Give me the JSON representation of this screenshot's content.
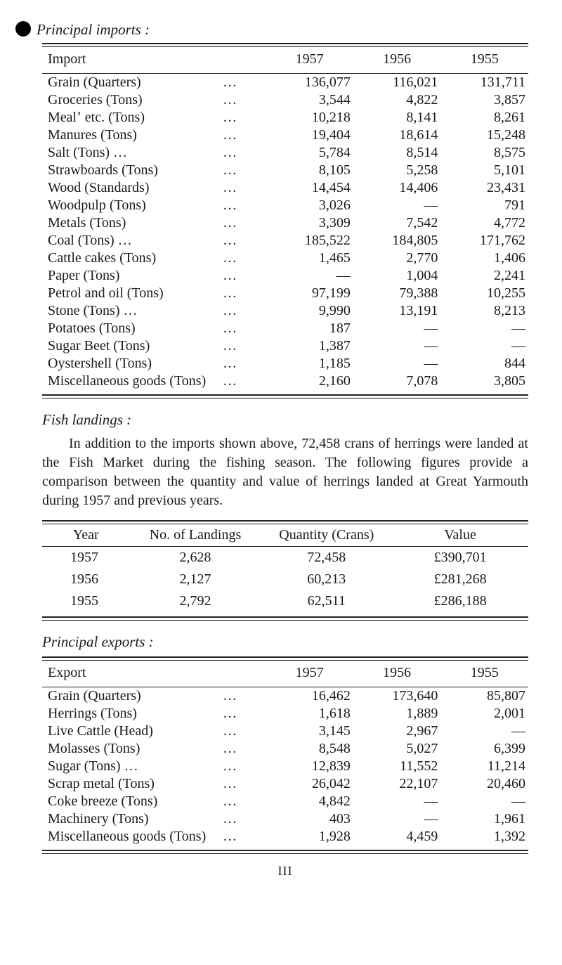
{
  "sections": {
    "imports_title": "Principal imports :",
    "landings_title": "Fish landings :",
    "exports_title": "Principal exports :"
  },
  "years": [
    "1957",
    "1956",
    "1955"
  ],
  "imports": {
    "header_label": "Import",
    "rows": [
      {
        "label": "Grain   (Quarters)",
        "y1957": "136,077",
        "y1956": "116,021",
        "y1955": "131,711"
      },
      {
        "label": "Groceries   (Tons)",
        "y1957": "3,544",
        "y1956": "4,822",
        "y1955": "3,857"
      },
      {
        "label": "Mealʼ etc.   (Tons)",
        "y1957": "10,218",
        "y1956": "8,141",
        "y1955": "8,261"
      },
      {
        "label": "Manures   (Tons)",
        "y1957": "19,404",
        "y1956": "18,614",
        "y1955": "15,248"
      },
      {
        "label": "Salt   (Tons)       …",
        "y1957": "5,784",
        "y1956": "8,514",
        "y1955": "8,575"
      },
      {
        "label": "Strawboards   (Tons)",
        "y1957": "8,105",
        "y1956": "5,258",
        "y1955": "5,101"
      },
      {
        "label": "Wood   (Standards)",
        "y1957": "14,454",
        "y1956": "14,406",
        "y1955": "23,431"
      },
      {
        "label": "Woodpulp   (Tons)",
        "y1957": "3,026",
        "y1956": "—",
        "y1955": "791"
      },
      {
        "label": "Metals   (Tons)",
        "y1957": "3,309",
        "y1956": "7,542",
        "y1955": "4,772"
      },
      {
        "label": "Coal   (Tons)       …",
        "y1957": "185,522",
        "y1956": "184,805",
        "y1955": "171,762"
      },
      {
        "label": "Cattle  cakes   (Tons)",
        "y1957": "1,465",
        "y1956": "2,770",
        "y1955": "1,406"
      },
      {
        "label": "Paper   (Tons)",
        "y1957": "—",
        "y1956": "1,004",
        "y1955": "2,241"
      },
      {
        "label": "Petrol  and  oil   (Tons)",
        "y1957": "97,199",
        "y1956": "79,388",
        "y1955": "10,255"
      },
      {
        "label": "Stone   (Tons)      …",
        "y1957": "9,990",
        "y1956": "13,191",
        "y1955": "8,213"
      },
      {
        "label": "Potatoes   (Tons)",
        "y1957": "187",
        "y1956": "—",
        "y1955": "—"
      },
      {
        "label": "Sugar  Beet   (Tons)",
        "y1957": "1,387",
        "y1956": "—",
        "y1955": "—"
      },
      {
        "label": "Oystershell   (Tons)",
        "y1957": "1,185",
        "y1956": "—",
        "y1955": "844"
      },
      {
        "label": "Miscellaneous goods  (Tons)",
        "y1957": "2,160",
        "y1956": "7,078",
        "y1955": "3,805"
      }
    ]
  },
  "landings_para": "In addition to the imports shown above, 72,458 crans of herrings were landed at the Fish Market during the fishing season. The following figures provide a comparison between the quantity and value of herrings landed at Great Yarmouth during 1957 and previous years.",
  "landings": {
    "headers": [
      "Year",
      "No. of Landings",
      "Quantity (Crans)",
      "Value"
    ],
    "rows": [
      {
        "year": "1957",
        "landings": "2,628",
        "qty": "72,458",
        "value": "£390,701"
      },
      {
        "year": "1956",
        "landings": "2,127",
        "qty": "60,213",
        "value": "£281,268"
      },
      {
        "year": "1955",
        "landings": "2,792",
        "qty": "62,511",
        "value": "£286,188"
      }
    ]
  },
  "exports": {
    "header_label": "Export",
    "rows": [
      {
        "label": "Grain   (Quarters)",
        "y1957": "16,462",
        "y1956": "173,640",
        "y1955": "85,807"
      },
      {
        "label": "Herrings   (Tons)",
        "y1957": "1,618",
        "y1956": "1,889",
        "y1955": "2,001"
      },
      {
        "label": "Live  Cattle   (Head)",
        "y1957": "3,145",
        "y1956": "2,967",
        "y1955": "—"
      },
      {
        "label": "Molasses   (Tons)",
        "y1957": "8,548",
        "y1956": "5,027",
        "y1955": "6,399"
      },
      {
        "label": "Sugar   (Tons)      …",
        "y1957": "12,839",
        "y1956": "11,552",
        "y1955": "11,214"
      },
      {
        "label": "Scrap  metal   (Tons)",
        "y1957": "26,042",
        "y1956": "22,107",
        "y1955": "20,460"
      },
      {
        "label": "Coke  breeze   (Tons)",
        "y1957": "4,842",
        "y1956": "—",
        "y1955": "—"
      },
      {
        "label": "Machinery   (Tons)",
        "y1957": "403",
        "y1956": "—",
        "y1955": "1,961"
      },
      {
        "label": "Miscellaneous goods  (Tons)",
        "y1957": "1,928",
        "y1956": "4,459",
        "y1955": "1,392"
      }
    ]
  },
  "page_number": "III",
  "dots": "…",
  "colors": {
    "text": "#1a1a1a",
    "rule": "#222222",
    "background": "#ffffff"
  },
  "fontsizes": {
    "title": 21,
    "body": 20,
    "pagenum": 18
  }
}
